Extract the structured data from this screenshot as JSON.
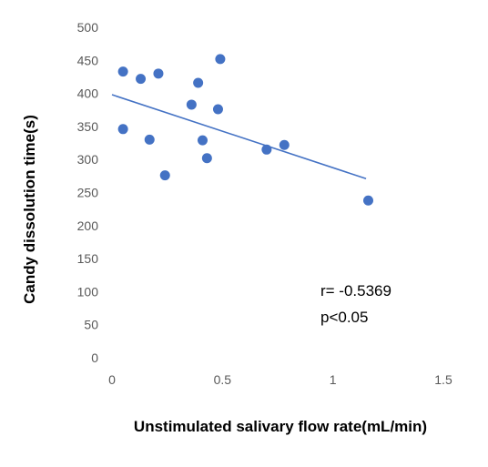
{
  "chart_data": {
    "type": "scatter",
    "title": "",
    "xlabel": "Unstimulated salivary flow rate(mL/min)",
    "ylabel": "Candy dissolution time(s)",
    "xlim": [
      0,
      1.5
    ],
    "ylim": [
      0,
      500
    ],
    "x_ticks": [
      "0",
      "0.5",
      "1",
      "1.5"
    ],
    "y_ticks": [
      "0",
      "50",
      "100",
      "150",
      "200",
      "250",
      "300",
      "350",
      "400",
      "450",
      "500"
    ],
    "grid": false,
    "legend": "none",
    "marker_color": "#4472C4",
    "trendline_color": "#4472C4",
    "points": [
      {
        "x": 0.05,
        "y": 433
      },
      {
        "x": 0.05,
        "y": 346
      },
      {
        "x": 0.13,
        "y": 422
      },
      {
        "x": 0.17,
        "y": 330
      },
      {
        "x": 0.21,
        "y": 430
      },
      {
        "x": 0.24,
        "y": 276
      },
      {
        "x": 0.36,
        "y": 383
      },
      {
        "x": 0.39,
        "y": 416
      },
      {
        "x": 0.41,
        "y": 329
      },
      {
        "x": 0.43,
        "y": 302
      },
      {
        "x": 0.48,
        "y": 376
      },
      {
        "x": 0.49,
        "y": 452
      },
      {
        "x": 0.7,
        "y": 315
      },
      {
        "x": 0.78,
        "y": 322
      },
      {
        "x": 1.16,
        "y": 238
      }
    ],
    "trendline": {
      "x": [
        0.0,
        1.15
      ],
      "y": [
        398,
        271
      ]
    },
    "annotations": [
      "r= -0.5369",
      "p<0.05"
    ]
  }
}
